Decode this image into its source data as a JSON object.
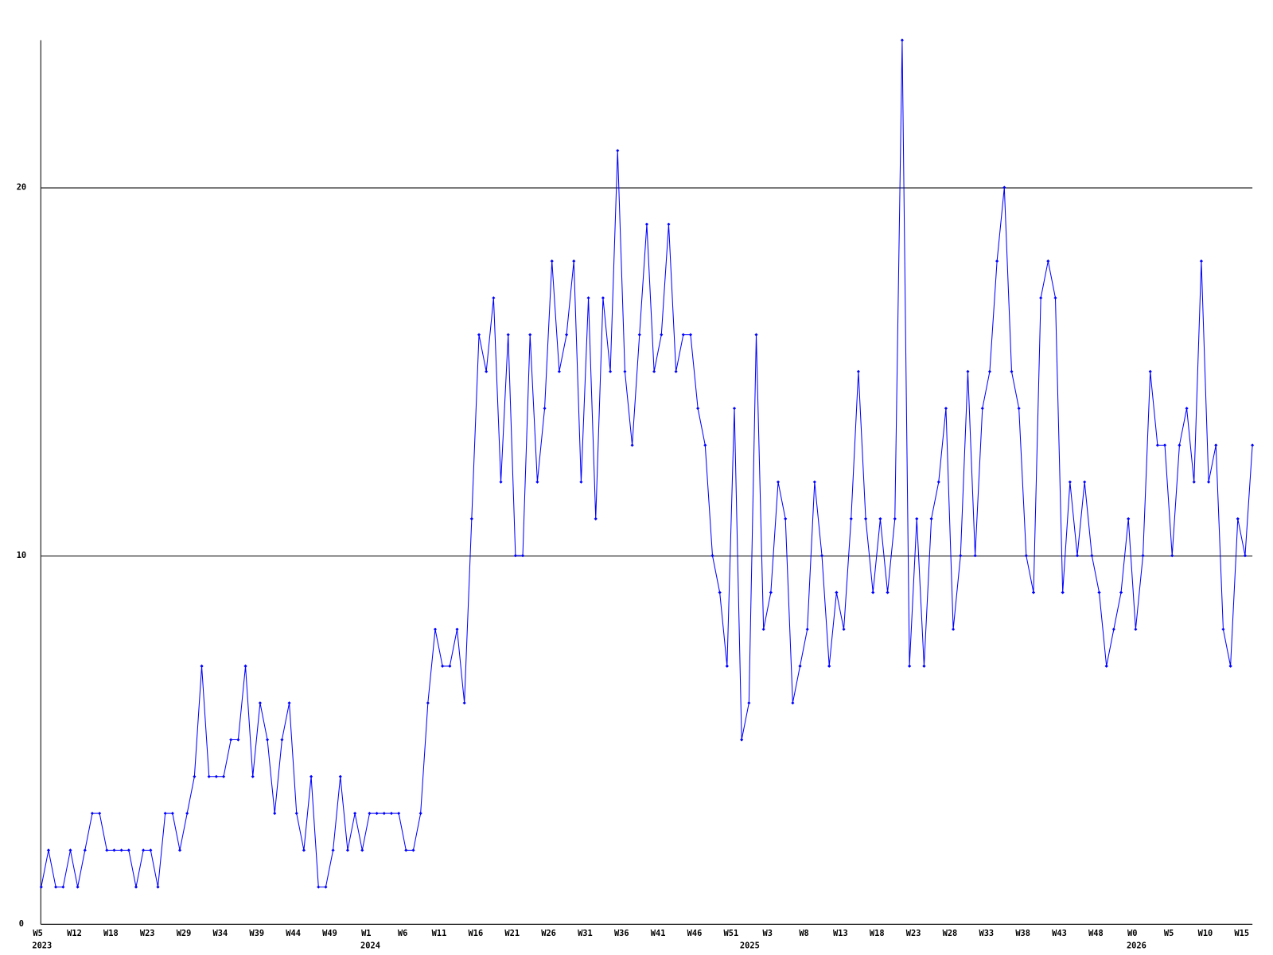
{
  "chart_data": {
    "type": "line",
    "categories": [
      "W5",
      null,
      null,
      null,
      null,
      "W12",
      null,
      null,
      null,
      null,
      "W18",
      null,
      null,
      null,
      null,
      "W23",
      null,
      null,
      null,
      null,
      "W29",
      null,
      null,
      null,
      null,
      "W34",
      null,
      null,
      null,
      null,
      "W39",
      null,
      null,
      null,
      null,
      "W44",
      null,
      null,
      null,
      null,
      "W49",
      null,
      null,
      null,
      null,
      "W1",
      null,
      null,
      null,
      null,
      "W6",
      null,
      null,
      null,
      null,
      "W11",
      null,
      null,
      null,
      null,
      "W16",
      null,
      null,
      null,
      null,
      "W21",
      null,
      null,
      null,
      null,
      "W26",
      null,
      null,
      null,
      null,
      "W31",
      null,
      null,
      null,
      null,
      "W36",
      null,
      null,
      null,
      null,
      "W41",
      null,
      null,
      null,
      null,
      "W46",
      null,
      null,
      null,
      null,
      "W51",
      null,
      null,
      null,
      null,
      "W3",
      null,
      null,
      null,
      null,
      "W8",
      null,
      null,
      null,
      null,
      "W13",
      null,
      null,
      null,
      null,
      "W18",
      null,
      null,
      null,
      null,
      "W23",
      null,
      null,
      null,
      null,
      "W28",
      null,
      null,
      null,
      null,
      "W33",
      null,
      null,
      null,
      null,
      "W38",
      null,
      null,
      null,
      null,
      "W43",
      null,
      null,
      null,
      null,
      "W48",
      null,
      null,
      null,
      null,
      "W0",
      null,
      null,
      null,
      null,
      "W5",
      null,
      null,
      null,
      null,
      "W10",
      null,
      null,
      null,
      null,
      "W15",
      null
    ],
    "category_years": [
      "2023",
      null,
      null,
      null,
      null,
      null,
      null,
      null,
      null,
      null,
      null,
      null,
      null,
      null,
      null,
      null,
      null,
      null,
      null,
      null,
      null,
      null,
      null,
      null,
      null,
      null,
      null,
      null,
      null,
      null,
      null,
      null,
      null,
      null,
      null,
      null,
      null,
      null,
      null,
      null,
      null,
      null,
      null,
      null,
      null,
      "2024",
      null,
      null,
      null,
      null,
      null,
      null,
      null,
      null,
      null,
      null,
      null,
      null,
      null,
      null,
      null,
      null,
      null,
      null,
      null,
      null,
      null,
      null,
      null,
      null,
      null,
      null,
      null,
      null,
      null,
      null,
      null,
      null,
      null,
      null,
      null,
      null,
      null,
      null,
      null,
      null,
      null,
      null,
      null,
      null,
      null,
      null,
      null,
      null,
      null,
      null,
      null,
      "2025",
      null,
      null,
      null,
      null,
      null,
      null,
      null,
      null,
      null,
      null,
      null,
      null,
      null,
      null,
      null,
      null,
      null,
      null,
      null,
      null,
      null,
      null,
      null,
      null,
      null,
      null,
      null,
      null,
      null,
      null,
      null,
      null,
      null,
      null,
      null,
      null,
      null,
      null,
      null,
      null,
      null,
      null,
      null,
      null,
      null,
      null,
      null,
      null,
      null,
      null,
      null,
      null,
      "2026",
      null,
      null,
      null,
      null,
      null,
      null,
      null,
      null,
      null,
      null,
      null,
      null,
      null,
      null,
      null,
      null
    ],
    "values": [
      1,
      2,
      1,
      1,
      2,
      1,
      2,
      3,
      3,
      2,
      2,
      2,
      2,
      1,
      2,
      2,
      1,
      3,
      3,
      2,
      3,
      4,
      7,
      4,
      4,
      4,
      5,
      5,
      7,
      4,
      6,
      5,
      3,
      5,
      6,
      3,
      2,
      4,
      1,
      1,
      2,
      4,
      2,
      3,
      2,
      3,
      3,
      3,
      3,
      3,
      2,
      2,
      3,
      6,
      8,
      7,
      7,
      8,
      6,
      11,
      16,
      15,
      17,
      12,
      16,
      10,
      10,
      16,
      12,
      14,
      18,
      15,
      16,
      18,
      12,
      17,
      11,
      17,
      15,
      21,
      15,
      13,
      16,
      19,
      15,
      16,
      19,
      15,
      16,
      16,
      14,
      13,
      10,
      9,
      7,
      14,
      5,
      6,
      16,
      8,
      9,
      12,
      11,
      6,
      7,
      8,
      12,
      10,
      7,
      9,
      8,
      11,
      15,
      11,
      9,
      11,
      9,
      11,
      24,
      7,
      11,
      7,
      11,
      12,
      14,
      8,
      10,
      15,
      10,
      14,
      15,
      18,
      20,
      15,
      14,
      10,
      9,
      17,
      18,
      17,
      9,
      12,
      10,
      12,
      10,
      9,
      7,
      8,
      9,
      11,
      8,
      10,
      15,
      13,
      13,
      10,
      13,
      14,
      12,
      18,
      12,
      13,
      8,
      7,
      11,
      10,
      13
    ],
    "color": "#0000ff",
    "ylim": [
      0,
      24
    ],
    "yticks": [
      0,
      10,
      20
    ],
    "grid": true
  }
}
